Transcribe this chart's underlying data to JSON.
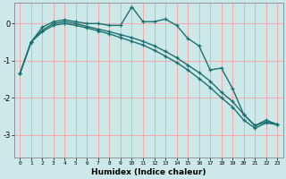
{
  "xlabel": "Humidex (Indice chaleur)",
  "background_color": "#cce8e8",
  "grid_color": "#f5aaaa",
  "line_color": "#1a7070",
  "xlim": [
    -0.5,
    23.5
  ],
  "ylim": [
    -3.6,
    0.55
  ],
  "yticks": [
    0,
    -1,
    -2,
    -3
  ],
  "xticks": [
    0,
    1,
    2,
    3,
    4,
    5,
    6,
    7,
    8,
    9,
    10,
    11,
    12,
    13,
    14,
    15,
    16,
    17,
    18,
    19,
    20,
    21,
    22,
    23
  ],
  "line1_x": [
    0,
    1,
    2,
    3,
    4,
    5,
    6,
    7,
    8,
    9,
    10,
    11,
    12,
    13,
    14,
    15,
    16,
    17,
    18,
    19,
    20,
    21,
    22,
    23
  ],
  "line1_y": [
    -1.35,
    -0.5,
    -0.1,
    0.05,
    0.1,
    0.05,
    0.0,
    0.0,
    -0.05,
    -0.05,
    0.45,
    0.05,
    0.05,
    0.12,
    -0.05,
    -0.4,
    -0.6,
    -1.25,
    -1.2,
    -1.75,
    -2.45,
    -2.75,
    -2.6,
    -2.72
  ],
  "line2_x": [
    0,
    1,
    2,
    3,
    4,
    5,
    6,
    7,
    8,
    9,
    10,
    11,
    12,
    13,
    14,
    15,
    16,
    17,
    18,
    19,
    20,
    21,
    22,
    23
  ],
  "line2_y": [
    -1.35,
    -0.5,
    -0.18,
    0.0,
    0.05,
    0.0,
    -0.08,
    -0.15,
    -0.22,
    -0.3,
    -0.38,
    -0.48,
    -0.6,
    -0.75,
    -0.92,
    -1.12,
    -1.32,
    -1.55,
    -1.85,
    -2.1,
    -2.45,
    -2.75,
    -2.65,
    -2.72
  ],
  "line3_x": [
    0,
    1,
    2,
    3,
    4,
    5,
    6,
    7,
    8,
    9,
    10,
    11,
    12,
    13,
    14,
    15,
    16,
    17,
    18,
    19,
    20,
    21,
    22,
    23
  ],
  "line3_y": [
    -1.35,
    -0.5,
    -0.22,
    -0.05,
    0.0,
    -0.05,
    -0.12,
    -0.2,
    -0.28,
    -0.38,
    -0.48,
    -0.58,
    -0.72,
    -0.88,
    -1.05,
    -1.25,
    -1.48,
    -1.72,
    -2.0,
    -2.25,
    -2.6,
    -2.82,
    -2.68,
    -2.72
  ]
}
